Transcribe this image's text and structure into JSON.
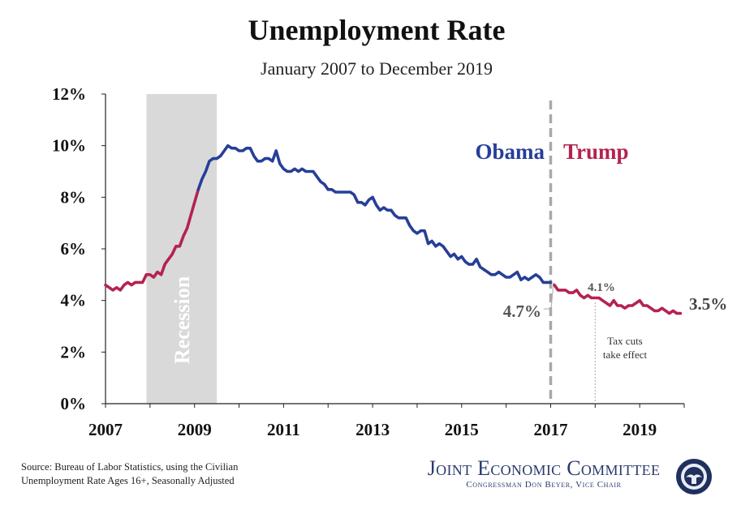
{
  "chart_data": {
    "type": "line",
    "title": "Unemployment Rate",
    "subtitle": "January 2007 to December 2019",
    "ylim": [
      0,
      12
    ],
    "xlim": [
      2007.0,
      2020.0
    ],
    "y_ticks": [
      0,
      2,
      4,
      6,
      8,
      10,
      12
    ],
    "y_tick_labels": [
      "0%",
      "2%",
      "4%",
      "6%",
      "8%",
      "10%",
      "12%"
    ],
    "x_ticks": [
      2007,
      2009,
      2011,
      2013,
      2015,
      2017,
      2019
    ],
    "x_tick_labels": [
      "2007",
      "2009",
      "2011",
      "2013",
      "2015",
      "2017",
      "2019"
    ],
    "recession": {
      "label": "Recession",
      "start": 2007.92,
      "end": 2009.5
    },
    "divider": {
      "x": 2017.0,
      "left_label": "Obama",
      "right_label": "Trump"
    },
    "annotations": {
      "obama_end_label": "4.7%",
      "tax_label": "4.1%",
      "final_label": "3.5%",
      "tax_cuts_line1": "Tax cuts",
      "tax_cuts_line2": "take effect",
      "tax_cuts_x": 2018.0
    },
    "colors": {
      "red": "#b5224f",
      "blue": "#263f97",
      "recession": "#d9d9d9",
      "divider": "#a9a9a9"
    },
    "series": [
      {
        "name": "Unemployment Rate",
        "start": 2007.0,
        "values": [
          4.6,
          4.5,
          4.4,
          4.5,
          4.4,
          4.6,
          4.7,
          4.6,
          4.7,
          4.7,
          4.7,
          5.0,
          5.0,
          4.9,
          5.1,
          5.0,
          5.4,
          5.6,
          5.8,
          6.1,
          6.1,
          6.5,
          6.8,
          7.3,
          7.8,
          8.3,
          8.7,
          9.0,
          9.4,
          9.5,
          9.5,
          9.6,
          9.8,
          10.0,
          9.9,
          9.9,
          9.8,
          9.8,
          9.9,
          9.9,
          9.6,
          9.4,
          9.4,
          9.5,
          9.5,
          9.4,
          9.8,
          9.3,
          9.1,
          9.0,
          9.0,
          9.1,
          9.0,
          9.1,
          9.0,
          9.0,
          9.0,
          8.8,
          8.6,
          8.5,
          8.3,
          8.3,
          8.2,
          8.2,
          8.2,
          8.2,
          8.2,
          8.1,
          7.8,
          7.8,
          7.7,
          7.9,
          8.0,
          7.7,
          7.5,
          7.6,
          7.5,
          7.5,
          7.3,
          7.2,
          7.2,
          7.2,
          6.9,
          6.7,
          6.6,
          6.7,
          6.7,
          6.2,
          6.3,
          6.1,
          6.2,
          6.1,
          5.9,
          5.7,
          5.8,
          5.6,
          5.7,
          5.5,
          5.4,
          5.4,
          5.6,
          5.3,
          5.2,
          5.1,
          5.0,
          5.0,
          5.1,
          5.0,
          4.9,
          4.9,
          5.0,
          5.1,
          4.8,
          4.9,
          4.8,
          4.9,
          5.0,
          4.9,
          4.7,
          4.7,
          4.7,
          4.6,
          4.4,
          4.4,
          4.4,
          4.3,
          4.3,
          4.4,
          4.2,
          4.1,
          4.2,
          4.1,
          4.1,
          4.1,
          4.0,
          3.9,
          3.8,
          4.0,
          3.8,
          3.8,
          3.7,
          3.8,
          3.8,
          3.9,
          4.0,
          3.8,
          3.8,
          3.7,
          3.6,
          3.6,
          3.7,
          3.6,
          3.5,
          3.6,
          3.5,
          3.5
        ]
      }
    ]
  },
  "footer": {
    "source_line1": "Source: Bureau of Labor Statistics, using the Civilian",
    "source_line2": "Unemployment Rate Ages 16+, Seasonally Adjusted",
    "org_name": "Joint Economic Committee",
    "org_sub": "Congressman Don Beyer, Vice Chair"
  }
}
